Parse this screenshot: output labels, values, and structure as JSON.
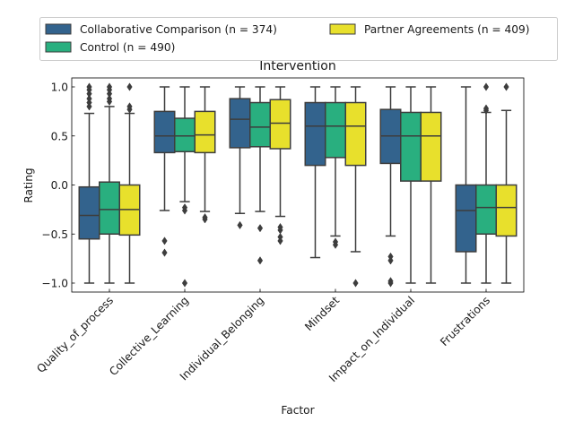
{
  "chart_data": {
    "type": "box",
    "title": "Intervention",
    "xlabel": "Factor",
    "ylabel": "Rating",
    "ylim": [
      -1.1,
      1.1
    ],
    "yticks": [
      -1.0,
      -0.5,
      0.0,
      0.5,
      1.0
    ],
    "ytick_labels": [
      "−1.0",
      "−0.5",
      "0.0",
      "0.5",
      "1.0"
    ],
    "categories": [
      "Quality_of_process",
      "Collective_Learning",
      "Individual_Belonging",
      "Mindset",
      "Impact_on_Individual",
      "Frustrations"
    ],
    "legend_position": "top, above plot",
    "grid": false,
    "series": [
      {
        "name": "Collaborative Comparison (n = 374)",
        "color": "#33638d",
        "boxes": [
          {
            "whislo": -1.0,
            "q1": -0.55,
            "med": -0.31,
            "q3": -0.02,
            "whishi": 0.73,
            "fliers": [
              0.8,
              0.84,
              0.88,
              0.93,
              0.97,
              1.0
            ]
          },
          {
            "whislo": -0.26,
            "q1": 0.33,
            "med": 0.5,
            "q3": 0.75,
            "whishi": 1.0,
            "fliers": [
              -0.57,
              -0.69
            ]
          },
          {
            "whislo": -0.29,
            "q1": 0.38,
            "med": 0.67,
            "q3": 0.88,
            "whishi": 1.0,
            "fliers": [
              -0.41
            ]
          },
          {
            "whislo": -0.74,
            "q1": 0.2,
            "med": 0.6,
            "q3": 0.84,
            "whishi": 1.0,
            "fliers": []
          },
          {
            "whislo": -0.52,
            "q1": 0.22,
            "med": 0.5,
            "q3": 0.77,
            "whishi": 1.0,
            "fliers": [
              -0.73,
              -0.77,
              -0.98,
              -1.0
            ]
          },
          {
            "whislo": -1.0,
            "q1": -0.68,
            "med": -0.26,
            "q3": 0.0,
            "whishi": 1.0,
            "fliers": []
          }
        ]
      },
      {
        "name": "Control (n = 490)",
        "color": "#29af7f",
        "boxes": [
          {
            "whislo": -1.0,
            "q1": -0.5,
            "med": -0.25,
            "q3": 0.03,
            "whishi": 0.8,
            "fliers": [
              0.85,
              0.88,
              0.93,
              0.97,
              1.0
            ]
          },
          {
            "whislo": -0.17,
            "q1": 0.34,
            "med": 0.5,
            "q3": 0.68,
            "whishi": 1.0,
            "fliers": [
              -0.23,
              -0.26,
              -1.0
            ]
          },
          {
            "whislo": -0.27,
            "q1": 0.39,
            "med": 0.59,
            "q3": 0.84,
            "whishi": 1.0,
            "fliers": [
              -0.44,
              -0.77
            ]
          },
          {
            "whislo": -0.52,
            "q1": 0.28,
            "med": 0.6,
            "q3": 0.84,
            "whishi": 1.0,
            "fliers": [
              -0.58,
              -0.61
            ]
          },
          {
            "whislo": -1.0,
            "q1": 0.04,
            "med": 0.5,
            "q3": 0.74,
            "whishi": 1.0,
            "fliers": []
          },
          {
            "whislo": -1.0,
            "q1": -0.5,
            "med": -0.23,
            "q3": 0.0,
            "whishi": 0.74,
            "fliers": [
              0.76,
              0.78,
              1.0
            ]
          }
        ]
      },
      {
        "name": "Partner Agreements (n = 409)",
        "color": "#e8e02c",
        "boxes": [
          {
            "whislo": -1.0,
            "q1": -0.51,
            "med": -0.25,
            "q3": 0.0,
            "whishi": 0.73,
            "fliers": [
              0.77,
              0.8,
              1.0
            ]
          },
          {
            "whislo": -0.27,
            "q1": 0.33,
            "med": 0.51,
            "q3": 0.75,
            "whishi": 1.0,
            "fliers": [
              -0.33,
              -0.35
            ]
          },
          {
            "whislo": -0.32,
            "q1": 0.37,
            "med": 0.63,
            "q3": 0.87,
            "whishi": 1.0,
            "fliers": [
              -0.43,
              -0.46,
              -0.53,
              -0.57
            ]
          },
          {
            "whislo": -0.68,
            "q1": 0.2,
            "med": 0.6,
            "q3": 0.84,
            "whishi": 1.0,
            "fliers": [
              -1.0
            ]
          },
          {
            "whislo": -1.0,
            "q1": 0.04,
            "med": 0.5,
            "q3": 0.74,
            "whishi": 1.0,
            "fliers": []
          },
          {
            "whislo": -1.0,
            "q1": -0.52,
            "med": -0.23,
            "q3": 0.0,
            "whishi": 0.76,
            "fliers": [
              1.0
            ]
          }
        ]
      }
    ]
  }
}
